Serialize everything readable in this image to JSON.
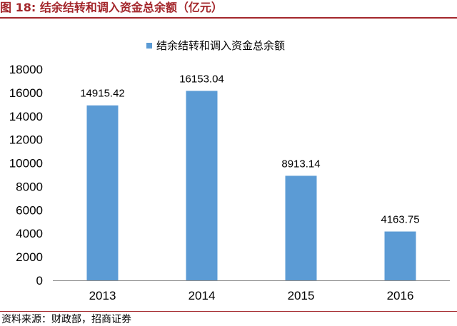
{
  "figure": {
    "label": "图 18:",
    "title": "结余结转和调入资金总余额（亿元）"
  },
  "source": "资料来源：财政部，招商证券",
  "colors": {
    "bar": "#5b9bd5",
    "title": "#a3262b",
    "axis": "#8c8c8c"
  },
  "chart_data": {
    "type": "bar",
    "categories": [
      "2013",
      "2014",
      "2015",
      "2016"
    ],
    "series": [
      {
        "name": "结余结转和调入资金总余额",
        "values": [
          14915.42,
          16153.04,
          8913.14,
          4163.75
        ]
      }
    ],
    "data_labels": [
      "14915.42",
      "16153.04",
      "8913.14",
      "4163.75"
    ],
    "ylim": [
      0,
      18000
    ],
    "yticks": [
      0,
      2000,
      4000,
      6000,
      8000,
      10000,
      12000,
      14000,
      16000,
      18000
    ],
    "legend_position": "top",
    "grid": false
  }
}
